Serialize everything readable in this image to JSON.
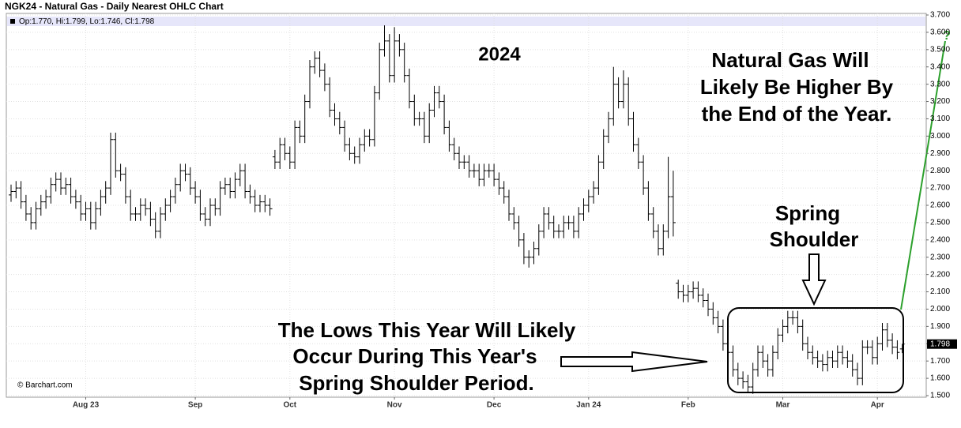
{
  "chart_data": {
    "type": "ohlc",
    "title": "NGK24 - Natural Gas - Daily Nearest OHLC Chart",
    "legend_text": "Op:1.770, Hi:1.799, Lo:1.746, Cl:1.798",
    "last_label": "1.798",
    "credit": "© Barchart.com",
    "color": "#000000",
    "grid": true,
    "annotations": {
      "year": "2024",
      "outlook": [
        "Natural Gas Will",
        "Likely Be Higher By",
        "the End of the Year."
      ],
      "shoulder": [
        "Spring",
        "Shoulder"
      ],
      "lows": [
        "The Lows This Year Will Likely",
        "Occur During This Year's",
        "Spring Shoulder Period."
      ],
      "question": "?"
    },
    "ylim": [
      1.5,
      3.7
    ],
    "yticks": [
      {
        "value": 1.5,
        "label": "1.500"
      },
      {
        "value": 1.6,
        "label": "1.600"
      },
      {
        "value": 1.7,
        "label": "1.700"
      },
      {
        "value": 1.8,
        "label": "1.800"
      },
      {
        "value": 1.9,
        "label": "1.900"
      },
      {
        "value": 2.0,
        "label": "2.000"
      },
      {
        "value": 2.1,
        "label": "2.100"
      },
      {
        "value": 2.2,
        "label": "2.200"
      },
      {
        "value": 2.3,
        "label": "2.300"
      },
      {
        "value": 2.4,
        "label": "2.400"
      },
      {
        "value": 2.5,
        "label": "2.500"
      },
      {
        "value": 2.6,
        "label": "2.600"
      },
      {
        "value": 2.7,
        "label": "2.700"
      },
      {
        "value": 2.8,
        "label": "2.800"
      },
      {
        "value": 2.9,
        "label": "2.900"
      },
      {
        "value": 3.0,
        "label": "3.000"
      },
      {
        "value": 3.1,
        "label": "3.100"
      },
      {
        "value": 3.2,
        "label": "3.200"
      },
      {
        "value": 3.3,
        "label": "3.300"
      },
      {
        "value": 3.4,
        "label": "3.400"
      },
      {
        "value": 3.5,
        "label": "3.500"
      },
      {
        "value": 3.6,
        "label": "3.600"
      },
      {
        "value": 3.7,
        "label": "3.700"
      }
    ],
    "categories": [
      null,
      null,
      null,
      null,
      null,
      null,
      null,
      null,
      null,
      null,
      null,
      null,
      null,
      null,
      null,
      "Aug 23",
      null,
      null,
      null,
      null,
      null,
      null,
      null,
      null,
      null,
      null,
      null,
      null,
      null,
      null,
      null,
      null,
      null,
      null,
      null,
      null,
      null,
      "Sep",
      null,
      null,
      null,
      null,
      null,
      null,
      null,
      null,
      null,
      null,
      null,
      null,
      null,
      null,
      null,
      null,
      null,
      null,
      "Oct",
      null,
      null,
      null,
      null,
      null,
      null,
      null,
      null,
      null,
      null,
      null,
      null,
      null,
      null,
      null,
      null,
      null,
      null,
      null,
      null,
      "Nov",
      null,
      null,
      null,
      null,
      null,
      null,
      null,
      null,
      null,
      null,
      null,
      null,
      null,
      null,
      null,
      null,
      null,
      null,
      null,
      "Dec",
      null,
      null,
      null,
      null,
      null,
      null,
      null,
      null,
      null,
      null,
      null,
      null,
      null,
      null,
      null,
      null,
      null,
      null,
      "Jan 24",
      null,
      null,
      null,
      null,
      null,
      null,
      null,
      null,
      null,
      null,
      null,
      null,
      null,
      null,
      null,
      null,
      null,
      null,
      null,
      "Feb",
      null,
      null,
      null,
      null,
      null,
      null,
      null,
      null,
      null,
      null,
      null,
      null,
      null,
      null,
      null,
      null,
      null,
      null,
      "Mar",
      null,
      null,
      null,
      null,
      null,
      null,
      null,
      null,
      null,
      null,
      null,
      null,
      null,
      null,
      null,
      null,
      null,
      null,
      "Apr",
      null,
      null,
      null,
      null,
      null
    ],
    "open": [
      2.66,
      2.68,
      2.7,
      2.62,
      2.55,
      2.5,
      2.58,
      2.62,
      2.65,
      2.72,
      2.75,
      2.7,
      2.72,
      2.65,
      2.62,
      2.55,
      2.58,
      2.5,
      2.58,
      2.65,
      2.7,
      2.98,
      2.8,
      2.78,
      2.65,
      2.55,
      2.55,
      2.6,
      2.58,
      2.52,
      2.45,
      2.55,
      2.6,
      2.65,
      2.72,
      2.8,
      2.78,
      2.7,
      2.65,
      2.55,
      2.52,
      2.6,
      2.58,
      2.7,
      2.72,
      2.68,
      2.75,
      2.8,
      2.68,
      2.65,
      2.6,
      2.62,
      2.6,
      2.88,
      2.85,
      2.95,
      2.9,
      2.85,
      3.05,
      3.0,
      3.2,
      3.4,
      3.45,
      3.38,
      3.3,
      3.15,
      3.1,
      3.05,
      2.95,
      2.9,
      2.88,
      2.95,
      3.0,
      2.98,
      3.25,
      3.5,
      3.55,
      3.35,
      3.55,
      3.5,
      3.35,
      3.2,
      3.1,
      3.1,
      3.0,
      3.15,
      3.25,
      3.2,
      3.05,
      2.95,
      2.9,
      2.85,
      2.85,
      2.8,
      2.8,
      2.75,
      2.8,
      2.8,
      2.75,
      2.7,
      2.65,
      2.55,
      2.5,
      2.4,
      2.3,
      2.3,
      2.35,
      2.45,
      2.55,
      2.5,
      2.45,
      2.45,
      2.5,
      2.5,
      2.45,
      2.55,
      2.6,
      2.65,
      2.7,
      2.85,
      3.0,
      3.1,
      3.3,
      3.2,
      3.3,
      3.1,
      2.95,
      2.85,
      2.7,
      2.55,
      2.45,
      2.35,
      2.45,
      2.65,
      2.15,
      2.1,
      2.08,
      2.1,
      2.12,
      2.08,
      2.05,
      2.0,
      1.95,
      1.9,
      1.8,
      1.75,
      1.65,
      1.6,
      1.58,
      1.55,
      1.65,
      1.75,
      1.7,
      1.65,
      1.75,
      1.85,
      1.9,
      1.95,
      1.95,
      1.9,
      1.8,
      1.75,
      1.72,
      1.7,
      1.68,
      1.72,
      1.7,
      1.75,
      1.72,
      1.7,
      1.65,
      1.6,
      1.78,
      1.78,
      1.72,
      1.8,
      1.88,
      1.82,
      1.78,
      1.77
    ],
    "high": [
      2.72,
      2.74,
      2.74,
      2.66,
      2.59,
      2.62,
      2.66,
      2.69,
      2.76,
      2.79,
      2.79,
      2.76,
      2.76,
      2.69,
      2.66,
      2.62,
      2.62,
      2.62,
      2.69,
      2.74,
      3.02,
      3.02,
      2.84,
      2.82,
      2.69,
      2.59,
      2.64,
      2.64,
      2.62,
      2.56,
      2.59,
      2.64,
      2.69,
      2.76,
      2.84,
      2.84,
      2.82,
      2.74,
      2.69,
      2.59,
      2.64,
      2.64,
      2.74,
      2.76,
      2.76,
      2.79,
      2.84,
      2.84,
      2.72,
      2.69,
      2.66,
      2.66,
      2.64,
      2.92,
      2.99,
      2.99,
      2.94,
      3.09,
      3.09,
      3.24,
      3.44,
      3.49,
      3.49,
      3.42,
      3.34,
      3.19,
      3.14,
      3.09,
      2.99,
      2.94,
      2.99,
      3.04,
      3.04,
      3.29,
      3.54,
      3.64,
      3.59,
      3.63,
      3.59,
      3.54,
      3.39,
      3.24,
      3.14,
      3.14,
      3.19,
      3.29,
      3.29,
      3.24,
      3.09,
      2.99,
      2.94,
      2.89,
      2.89,
      2.84,
      2.84,
      2.84,
      2.84,
      2.84,
      2.79,
      2.74,
      2.69,
      2.59,
      2.54,
      2.44,
      2.34,
      2.39,
      2.49,
      2.59,
      2.59,
      2.54,
      2.49,
      2.54,
      2.54,
      2.54,
      2.59,
      2.64,
      2.69,
      2.74,
      2.89,
      3.04,
      3.14,
      3.4,
      3.34,
      3.38,
      3.34,
      3.14,
      2.99,
      2.89,
      2.74,
      2.59,
      2.49,
      2.49,
      2.88,
      2.8,
      2.17,
      2.14,
      2.14,
      2.16,
      2.16,
      2.12,
      2.09,
      2.04,
      1.99,
      1.94,
      1.84,
      1.79,
      1.69,
      1.64,
      1.62,
      1.69,
      1.79,
      1.79,
      1.74,
      1.79,
      1.89,
      1.94,
      1.99,
      1.99,
      1.99,
      1.94,
      1.84,
      1.79,
      1.76,
      1.74,
      1.76,
      1.76,
      1.79,
      1.79,
      1.76,
      1.74,
      1.69,
      1.82,
      1.82,
      1.82,
      1.84,
      1.92,
      1.92,
      1.86,
      1.82,
      1.799
    ],
    "low": [
      2.62,
      2.64,
      2.58,
      2.51,
      2.46,
      2.46,
      2.54,
      2.58,
      2.61,
      2.68,
      2.66,
      2.66,
      2.61,
      2.58,
      2.51,
      2.51,
      2.46,
      2.46,
      2.54,
      2.61,
      2.66,
      2.76,
      2.74,
      2.61,
      2.51,
      2.51,
      2.51,
      2.54,
      2.48,
      2.41,
      2.41,
      2.51,
      2.56,
      2.61,
      2.68,
      2.74,
      2.66,
      2.61,
      2.51,
      2.48,
      2.48,
      2.54,
      2.54,
      2.66,
      2.64,
      2.64,
      2.71,
      2.64,
      2.61,
      2.56,
      2.56,
      2.56,
      2.54,
      2.81,
      2.81,
      2.86,
      2.81,
      2.81,
      2.96,
      2.96,
      3.16,
      3.36,
      3.34,
      3.26,
      3.11,
      3.06,
      3.01,
      2.91,
      2.86,
      2.84,
      2.84,
      2.91,
      2.94,
      2.94,
      3.21,
      3.46,
      3.31,
      3.31,
      3.46,
      3.31,
      3.16,
      3.06,
      3.06,
      2.96,
      2.96,
      3.11,
      3.16,
      3.01,
      2.91,
      2.86,
      2.81,
      2.81,
      2.76,
      2.76,
      2.71,
      2.71,
      2.76,
      2.71,
      2.66,
      2.61,
      2.51,
      2.46,
      2.36,
      2.26,
      2.24,
      2.26,
      2.31,
      2.41,
      2.46,
      2.41,
      2.41,
      2.41,
      2.46,
      2.41,
      2.41,
      2.51,
      2.56,
      2.61,
      2.66,
      2.81,
      2.96,
      3.06,
      3.16,
      3.16,
      3.06,
      2.91,
      2.81,
      2.66,
      2.51,
      2.41,
      2.31,
      2.31,
      2.41,
      2.42,
      2.06,
      2.04,
      2.04,
      2.06,
      2.04,
      2.01,
      1.96,
      1.91,
      1.86,
      1.76,
      1.71,
      1.61,
      1.56,
      1.54,
      1.52,
      1.51,
      1.61,
      1.66,
      1.61,
      1.61,
      1.71,
      1.81,
      1.86,
      1.91,
      1.86,
      1.76,
      1.71,
      1.68,
      1.66,
      1.64,
      1.64,
      1.66,
      1.66,
      1.68,
      1.66,
      1.61,
      1.56,
      1.56,
      1.74,
      1.68,
      1.68,
      1.76,
      1.78,
      1.74,
      1.71,
      1.746
    ],
    "close": [
      2.68,
      2.7,
      2.62,
      2.55,
      2.5,
      2.58,
      2.62,
      2.65,
      2.72,
      2.75,
      2.7,
      2.72,
      2.65,
      2.62,
      2.55,
      2.58,
      2.5,
      2.58,
      2.65,
      2.7,
      2.98,
      2.8,
      2.78,
      2.65,
      2.55,
      2.55,
      2.6,
      2.58,
      2.52,
      2.45,
      2.55,
      2.6,
      2.65,
      2.72,
      2.8,
      2.78,
      2.7,
      2.65,
      2.55,
      2.52,
      2.6,
      2.58,
      2.7,
      2.72,
      2.68,
      2.75,
      2.8,
      2.68,
      2.65,
      2.6,
      2.62,
      2.6,
      2.58,
      2.85,
      2.95,
      2.9,
      2.85,
      3.05,
      3.0,
      3.2,
      3.4,
      3.45,
      3.38,
      3.3,
      3.15,
      3.1,
      3.05,
      2.95,
      2.9,
      2.88,
      2.95,
      3.0,
      2.98,
      3.25,
      3.5,
      3.55,
      3.35,
      3.55,
      3.5,
      3.35,
      3.2,
      3.1,
      3.1,
      3.0,
      3.15,
      3.25,
      3.2,
      3.05,
      2.95,
      2.9,
      2.85,
      2.85,
      2.8,
      2.8,
      2.75,
      2.8,
      2.8,
      2.75,
      2.7,
      2.65,
      2.55,
      2.5,
      2.4,
      2.3,
      2.3,
      2.35,
      2.45,
      2.55,
      2.5,
      2.45,
      2.45,
      2.5,
      2.5,
      2.45,
      2.55,
      2.6,
      2.65,
      2.7,
      2.85,
      3.0,
      3.1,
      3.3,
      3.2,
      3.3,
      3.1,
      2.95,
      2.85,
      2.7,
      2.55,
      2.45,
      2.35,
      2.45,
      2.65,
      2.5,
      2.1,
      2.08,
      2.1,
      2.12,
      2.08,
      2.05,
      2.0,
      1.95,
      1.9,
      1.8,
      1.75,
      1.65,
      1.6,
      1.58,
      1.55,
      1.65,
      1.75,
      1.7,
      1.65,
      1.75,
      1.85,
      1.9,
      1.95,
      1.95,
      1.9,
      1.8,
      1.75,
      1.72,
      1.7,
      1.68,
      1.72,
      1.7,
      1.75,
      1.72,
      1.7,
      1.65,
      1.6,
      1.78,
      1.78,
      1.72,
      1.8,
      1.88,
      1.82,
      1.78,
      1.75,
      1.798
    ]
  }
}
